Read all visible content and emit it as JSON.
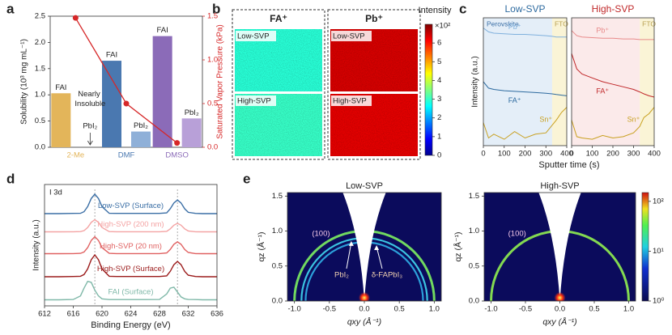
{
  "chart_data": [
    {
      "panel": "a",
      "type": "bar",
      "ylabel": "Solubility (10³ mg mL⁻¹)",
      "y2label": "Saturated Vapor Pressure (kPa)",
      "categories": [
        "2-Me",
        "DMF",
        "DMSO"
      ],
      "series": [
        {
          "name": "FAI",
          "colors": [
            "#e3b55a",
            "#4a78b0",
            "#8b6bb8"
          ],
          "values": [
            1.03,
            1.65,
            2.12
          ]
        },
        {
          "name": "PbI₂",
          "colors": [
            "#f0d090",
            "#8fb0d8",
            "#b8a0d8"
          ],
          "values": [
            null,
            0.3,
            0.55
          ]
        },
        {
          "axis": "y2",
          "color": "#d62728",
          "values": [
            1.48,
            0.5,
            0.05
          ]
        }
      ],
      "annotation": "Nearly Insoluble",
      "ylim": [
        0,
        2.5
      ],
      "yticks": [
        {
          "value": 0,
          "label": "0.0"
        },
        0.5,
        {
          "value": 1,
          "label": "1.0"
        },
        1.5,
        {
          "value": 2,
          "label": "2.0"
        },
        2.5
      ],
      "y2lim": [
        0,
        1.5
      ],
      "y2ticks": [
        {
          "value": 0,
          "label": "0.0"
        },
        0.5,
        {
          "value": 1,
          "label": "1.0"
        },
        1.5
      ]
    },
    {
      "panel": "b",
      "type": "heatmap",
      "columns": [
        "FA⁺",
        "Pb⁺"
      ],
      "rows": [
        "Low-SVP",
        "High-SVP"
      ],
      "values": [
        [
          2.9,
          6.4
        ],
        [
          3.0,
          6.3
        ]
      ],
      "clabel": "Intensity",
      "cmultiplier": "×10²",
      "clim": [
        0,
        7
      ],
      "cticks": [
        0,
        1,
        2,
        3,
        4,
        5,
        6
      ]
    },
    {
      "panel": "c",
      "type": "line",
      "title": "Low-SVP",
      "title_color": "#2d6a9f",
      "xlabel": "Sputter time (s)",
      "ylabel": "Intensity (a.u.)",
      "matrix_label": "Perovskite",
      "substrate_label": "FTO",
      "interface": 330,
      "shade": [
        "#e4eef8",
        "#faf4d6"
      ],
      "x": [
        0,
        25,
        50,
        100,
        150,
        200,
        250,
        300,
        330,
        350,
        375,
        400
      ],
      "xlim": [
        0,
        400
      ],
      "xticks": [
        0,
        100,
        200,
        300,
        400
      ],
      "ylim": [
        0,
        10
      ],
      "series": [
        {
          "name": "Pb⁺",
          "color": "#7fb0dd",
          "values": [
            9.2,
            8.9,
            8.8,
            8.75,
            8.7,
            8.7,
            8.65,
            8.6,
            8.55,
            8.5,
            8.5,
            8.5
          ]
        },
        {
          "name": "FA⁺",
          "color": "#2d6a9f",
          "values": [
            5.0,
            4.5,
            4.4,
            4.3,
            4.25,
            4.2,
            4.15,
            4.1,
            4.05,
            4.0,
            3.95,
            3.9
          ]
        },
        {
          "name": "Sn⁺",
          "color": "#c8a020",
          "values": [
            1.8,
            0.6,
            0.9,
            0.5,
            1.1,
            0.6,
            0.9,
            1.0,
            1.6,
            2.0,
            2.6,
            3.0
          ]
        }
      ]
    },
    {
      "type": "line",
      "title": "High-SVP",
      "title_color": "#c0282a",
      "substrate_label": "FTO",
      "interface": 330,
      "shade": [
        "#fbeaea",
        "#faf4d6"
      ],
      "x": [
        0,
        25,
        50,
        100,
        150,
        200,
        250,
        300,
        330,
        350,
        375,
        400
      ],
      "xlim": [
        0,
        400
      ],
      "xticks": [
        0,
        100,
        200,
        300,
        400
      ],
      "ylim": [
        0,
        10
      ],
      "series": [
        {
          "name": "Pb⁺",
          "color": "#e88a8a",
          "values": [
            9.0,
            8.6,
            8.5,
            8.45,
            8.4,
            8.4,
            8.35,
            8.35,
            8.3,
            8.3,
            8.3,
            8.3
          ]
        },
        {
          "name": "FA⁺",
          "color": "#c0282a",
          "values": [
            7.2,
            6.0,
            5.6,
            5.3,
            5.0,
            4.8,
            4.6,
            4.4,
            4.2,
            4.05,
            3.9,
            3.8
          ]
        },
        {
          "name": "Sn⁺",
          "color": "#c8a020",
          "values": [
            2.0,
            0.7,
            0.6,
            0.5,
            0.8,
            0.6,
            0.7,
            1.0,
            1.5,
            2.2,
            2.5,
            3.0
          ]
        }
      ]
    },
    {
      "panel": "d",
      "type": "line",
      "title": "I 3d",
      "xlabel": "Binding Energy (eV)",
      "ylabel": "Intensity (a.u.)",
      "x": [
        612,
        614,
        616,
        617,
        617.5,
        618,
        618.5,
        619,
        619.5,
        620,
        621,
        622,
        624,
        626,
        628,
        629,
        629.5,
        630,
        630.5,
        631,
        631.5,
        632,
        633,
        634,
        636
      ],
      "xlim": [
        612,
        636
      ],
      "xticks": [
        612,
        616,
        620,
        624,
        628,
        632,
        636
      ],
      "ylim": [
        0,
        10
      ],
      "guides": [
        619,
        630.5
      ],
      "series": [
        {
          "name": "Low-SVP (Surface)",
          "color": "#3a6ea5",
          "values": [
            7.6,
            7.6,
            7.62,
            7.63,
            7.76,
            8.18,
            8.85,
            9.2,
            8.85,
            8.18,
            7.63,
            7.62,
            7.62,
            7.62,
            7.62,
            7.66,
            8.0,
            8.48,
            8.72,
            8.48,
            8.0,
            7.71,
            7.62,
            7.6,
            7.6
          ]
        },
        {
          "name": "High-SVP (200 nm)",
          "color": "#f4a3a3",
          "values": [
            6.1,
            6.1,
            6.11,
            6.12,
            6.2,
            6.46,
            6.88,
            7.1,
            6.88,
            6.46,
            6.12,
            6.11,
            6.11,
            6.11,
            6.11,
            6.14,
            6.35,
            6.65,
            6.8,
            6.65,
            6.35,
            6.17,
            6.11,
            6.1,
            6.1
          ]
        },
        {
          "name": "High-SVP (20 nm)",
          "color": "#e06060",
          "values": [
            4.3,
            4.3,
            4.31,
            4.33,
            4.44,
            4.8,
            5.39,
            5.7,
            5.39,
            4.8,
            4.33,
            4.31,
            4.31,
            4.31,
            4.31,
            4.36,
            4.65,
            5.07,
            5.28,
            5.07,
            4.65,
            4.4,
            4.31,
            4.3,
            4.3
          ]
        },
        {
          "name": "High-SVP (Surface)",
          "color": "#9b1b1b",
          "values": [
            2.4,
            2.4,
            2.42,
            2.44,
            2.58,
            3.05,
            3.8,
            4.2,
            3.8,
            3.05,
            2.44,
            2.42,
            2.42,
            2.42,
            2.42,
            2.47,
            2.85,
            3.39,
            3.66,
            3.39,
            2.85,
            2.53,
            2.42,
            2.4,
            2.4
          ]
        },
        {
          "name": "FAI (Surface)",
          "color": "#7fb8a8",
          "values": [
            0.5,
            0.5,
            0.53,
            0.82,
            1.46,
            2.02,
            1.94,
            1.3,
            0.82,
            0.58,
            0.52,
            0.52,
            0.52,
            0.52,
            0.53,
            0.98,
            1.46,
            1.54,
            1.14,
            0.74,
            0.58,
            0.53,
            0.52,
            0.5,
            0.5
          ]
        }
      ]
    },
    {
      "panel": "e",
      "type": "image",
      "title": "Low-SVP",
      "xlabel": "qxy (Å⁻¹)",
      "ylabel": "qz (Å⁻¹)",
      "xlim": [
        -1.1,
        1.1
      ],
      "ylim": [
        0,
        1.55
      ],
      "xticks": [
        {
          "value": -1,
          "label": "-1.0"
        },
        -0.5,
        {
          "value": 0,
          "label": "0.0"
        },
        0.5,
        {
          "value": 1,
          "label": "1.0"
        }
      ],
      "yticks": [
        {
          "value": 0,
          "label": "0.0"
        },
        0.5,
        {
          "value": 1,
          "label": "1.0"
        },
        1.5
      ],
      "rings": [
        1.0,
        0.9,
        0.84
      ],
      "ring_labels": [
        "(100)",
        "PbI₂",
        "δ-FAPbI₃"
      ],
      "ring_colors": [
        "#7cf060",
        "#40d8f0",
        "#30b0e8"
      ]
    },
    {
      "type": "image",
      "title": "High-SVP",
      "xlabel": "qxy (Å⁻¹)",
      "ylabel": "qz (Å⁻¹)",
      "xlim": [
        -1.1,
        1.1
      ],
      "ylim": [
        0,
        1.55
      ],
      "xticks": [
        {
          "value": -1,
          "label": "-1.0"
        },
        -0.5,
        {
          "value": 0,
          "label": "0.0"
        },
        0.5,
        {
          "value": 1,
          "label": "1.0"
        }
      ],
      "yticks": [
        {
          "value": 0,
          "label": "0.0"
        },
        0.5,
        {
          "value": 1,
          "label": "1.0"
        },
        1.5
      ],
      "rings": [
        1.0
      ],
      "ring_labels": [
        "(100)"
      ],
      "ring_colors": [
        "#90f050"
      ],
      "clim": [
        1,
        150
      ],
      "clog": true,
      "cticks": [
        {
          "value": 1,
          "label": "10⁰"
        },
        {
          "value": 10,
          "label": "10¹"
        },
        {
          "value": 100,
          "label": "10²"
        }
      ]
    }
  ]
}
